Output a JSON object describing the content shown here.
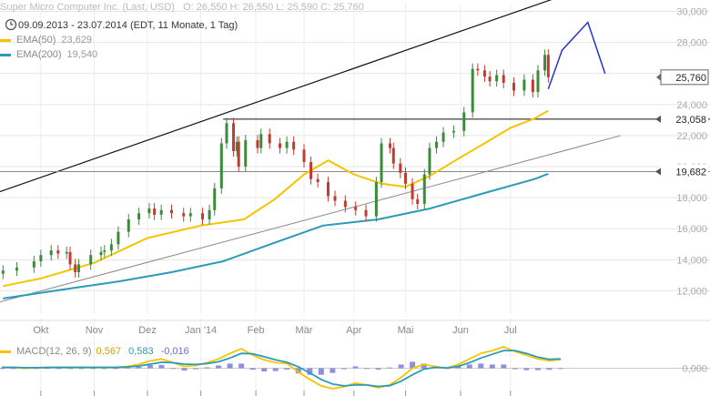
{
  "header": {
    "instrument": "Super Micro Computer Inc. (Last, USD)",
    "ohlc": "O: 26,550  H: 26,550  L: 25,590  C: 25,760",
    "range": "09.09.2013 - 23.07.2014 (EDT, 11 Monate, 1 Tag)"
  },
  "legend": {
    "ema50": {
      "label": "EMA(50)",
      "value": "23,629",
      "color": "#f5c400"
    },
    "ema200": {
      "label": "EMA(200)",
      "value": "19,540",
      "color": "#2a9bb8"
    },
    "macd": {
      "label": "MACD(12, 26, 9)",
      "v1": "0,567",
      "v2": "0,583",
      "v3": "-0,016"
    }
  },
  "colors": {
    "up": "#3d8a3d",
    "down": "#c23b2f",
    "forecast": "#2233cc",
    "macd_hist": "#7b7bd6"
  },
  "chart_data": {
    "type": "line",
    "title": "Super Micro Computer Inc. (Last, USD)",
    "xlabel": "",
    "ylabel": "",
    "x_ticks": [
      "Okt",
      "Nov",
      "Dez",
      "Jan '14",
      "Feb",
      "Mär",
      "Apr",
      "Mai",
      "Jun",
      "Jul"
    ],
    "y_ticks": [
      "12,000",
      "14,000",
      "16,000",
      "18,000",
      "20,000",
      "22,000",
      "24,000",
      "26,000",
      "28,000",
      "30,000"
    ],
    "ylim": [
      10.5,
      30.5
    ],
    "price_tags": [
      {
        "label": "25,760",
        "value": 25.76,
        "style": "box"
      },
      {
        "label": "23,058",
        "value": 23.058,
        "style": "flag"
      },
      {
        "label": "19,682",
        "value": 19.682,
        "style": "flag"
      }
    ],
    "price_dates": [
      "2013-09-09",
      "2013-09-17",
      "2013-09-27",
      "2013-10-01",
      "2013-10-07",
      "2013-10-11",
      "2013-10-16",
      "2013-10-18",
      "2013-10-21",
      "2013-10-23",
      "2013-10-30",
      "2013-11-05",
      "2013-11-07",
      "2013-11-11",
      "2013-11-15",
      "2013-11-21",
      "2013-11-27",
      "2013-12-03",
      "2013-12-06",
      "2013-12-10",
      "2013-12-16",
      "2013-12-23",
      "2013-12-27",
      "2014-01-03",
      "2014-01-07",
      "2014-01-10",
      "2014-01-14",
      "2014-01-17",
      "2014-01-21",
      "2014-01-23",
      "2014-01-24",
      "2014-01-28",
      "2014-02-04",
      "2014-02-06",
      "2014-02-11",
      "2014-02-17",
      "2014-02-21",
      "2014-02-25",
      "2014-03-03",
      "2014-03-07",
      "2014-03-11",
      "2014-03-17",
      "2014-03-21",
      "2014-03-27",
      "2014-04-02",
      "2014-04-08",
      "2014-04-14",
      "2014-04-17",
      "2014-04-22",
      "2014-04-24",
      "2014-04-28",
      "2014-05-01",
      "2014-05-05",
      "2014-05-08",
      "2014-05-12",
      "2014-05-15",
      "2014-05-19",
      "2014-05-23",
      "2014-05-29",
      "2014-06-04",
      "2014-06-09",
      "2014-06-12",
      "2014-06-16",
      "2014-06-19",
      "2014-06-23",
      "2014-06-27",
      "2014-07-03",
      "2014-07-09",
      "2014-07-14",
      "2014-07-17",
      "2014-07-21",
      "2014-07-23"
    ],
    "price_values": [
      13.3,
      13.5,
      13.9,
      14.3,
      14.6,
      14.4,
      14.5,
      13.7,
      13.2,
      13.7,
      14.3,
      14.5,
      14.6,
      15.0,
      15.8,
      16.6,
      17.0,
      17.3,
      16.9,
      17.2,
      17.0,
      16.8,
      17.0,
      16.6,
      17.2,
      18.6,
      21.5,
      22.8,
      21.0,
      21.6,
      20.0,
      21.7,
      21.2,
      22.1,
      21.5,
      21.2,
      21.6,
      21.1,
      20.3,
      19.2,
      19.0,
      18.1,
      17.8,
      17.4,
      17.2,
      16.8,
      19.0,
      21.5,
      21.2,
      20.2,
      19.6,
      18.9,
      17.9,
      17.6,
      19.5,
      21.2,
      21.6,
      22.2,
      22.3,
      23.5,
      26.3,
      26.2,
      25.8,
      25.5,
      25.9,
      25.4,
      24.9,
      25.6,
      24.8,
      26.2,
      27.2,
      25.76
    ],
    "support_line": 23.058,
    "hline2": 19.682,
    "series": [
      {
        "name": "EMA(50)",
        "dates": [
          "2013-09-09",
          "2013-10-01",
          "2013-11-01",
          "2013-12-02",
          "2014-01-02",
          "2014-01-27",
          "2014-02-14",
          "2014-03-03",
          "2014-03-17",
          "2014-04-01",
          "2014-04-17",
          "2014-05-01",
          "2014-05-15",
          "2014-06-02",
          "2014-06-16",
          "2014-07-01",
          "2014-07-15",
          "2014-07-23"
        ],
        "values": [
          12.3,
          12.8,
          13.8,
          15.4,
          16.2,
          16.6,
          17.9,
          19.5,
          20.4,
          19.5,
          18.9,
          18.7,
          19.4,
          20.6,
          21.5,
          22.5,
          23.1,
          23.6
        ]
      },
      {
        "name": "EMA(200)",
        "dates": [
          "2013-09-09",
          "2013-10-15",
          "2013-11-15",
          "2013-12-16",
          "2014-01-15",
          "2014-02-14",
          "2014-03-14",
          "2014-04-15",
          "2014-05-15",
          "2014-06-16",
          "2014-07-15",
          "2014-07-23"
        ],
        "values": [
          11.5,
          12.1,
          12.6,
          13.2,
          13.9,
          15.1,
          16.2,
          16.6,
          17.3,
          18.3,
          19.2,
          19.54
        ]
      }
    ],
    "trendlines": [
      {
        "kind": "upper",
        "points": [
          [
            "2013-09-01",
            18.15
          ],
          [
            "2014-07-31",
            31.0
          ]
        ]
      },
      {
        "kind": "lower",
        "points": [
          [
            "2013-09-01",
            11.1
          ],
          [
            "2014-09-03",
            22.0
          ]
        ]
      }
    ],
    "forecast": {
      "dates": [
        "2014-07-23",
        "2014-07-31",
        "2014-08-15",
        "2014-08-25"
      ],
      "values": [
        25.0,
        27.5,
        29.3,
        26.0
      ]
    },
    "macd_panel": {
      "y_ticks": [
        "0,000"
      ],
      "ylim": [
        -1.2,
        1.3
      ],
      "macd": [
        0.05,
        0.05,
        0.0,
        0.02,
        0.05,
        0.05,
        0.05,
        0.05,
        0.05,
        0.05,
        0.05,
        0.1,
        0.2,
        0.4,
        0.5,
        0.3,
        0.1,
        0.15,
        0.3,
        0.5,
        0.8,
        1.05,
        0.7,
        0.45,
        0.3,
        0.25,
        -0.2,
        -0.6,
        -0.95,
        -1.1,
        -1.0,
        -0.8,
        -0.9,
        -1.05,
        -0.9,
        -0.5,
        0.0,
        0.2,
        0.1,
        0.0,
        0.2,
        0.5,
        0.8,
        0.95,
        1.15,
        0.9,
        0.7,
        0.5,
        0.4,
        0.48
      ],
      "signal": [
        0.05,
        0.05,
        0.03,
        0.03,
        0.04,
        0.05,
        0.05,
        0.05,
        0.05,
        0.05,
        0.05,
        0.07,
        0.12,
        0.22,
        0.32,
        0.3,
        0.22,
        0.2,
        0.25,
        0.35,
        0.55,
        0.8,
        0.78,
        0.62,
        0.45,
        0.32,
        0.08,
        -0.25,
        -0.6,
        -0.85,
        -0.95,
        -0.9,
        -0.9,
        -0.98,
        -0.94,
        -0.7,
        -0.35,
        -0.05,
        0.05,
        0.02,
        0.1,
        0.3,
        0.55,
        0.75,
        0.95,
        0.95,
        0.8,
        0.6,
        0.48,
        0.5
      ]
    }
  }
}
